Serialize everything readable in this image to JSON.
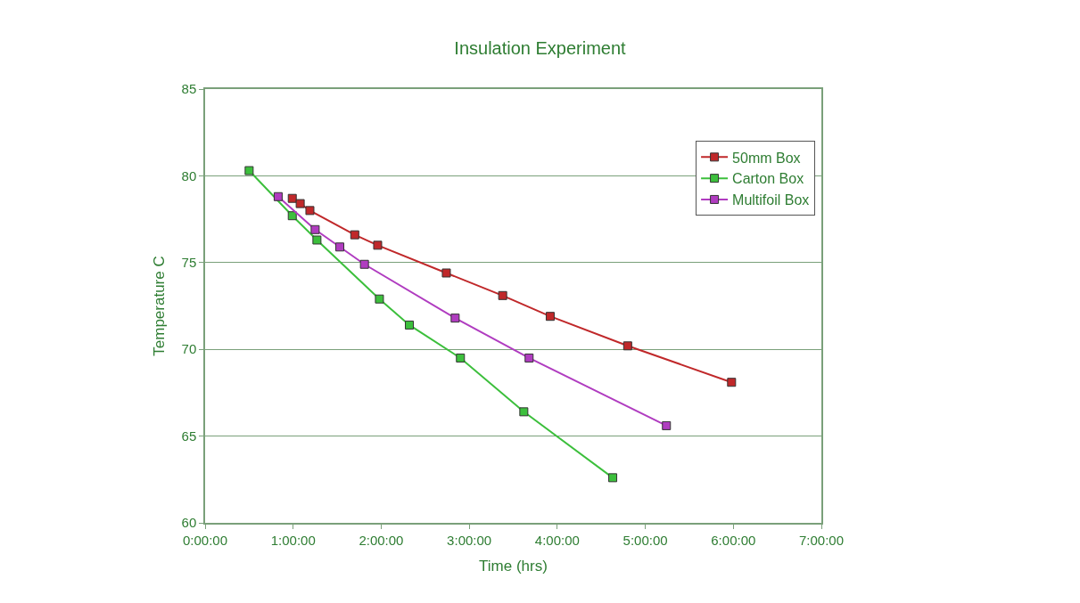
{
  "chart_data": {
    "type": "line",
    "title": "Insulation Experiment",
    "xlabel": "Time (hrs)",
    "ylabel": "Temperature C",
    "xlim": [
      0,
      7
    ],
    "xticks": [
      {
        "value": 0,
        "label": "0:00:00"
      },
      {
        "value": 1,
        "label": "1:00:00"
      },
      {
        "value": 2,
        "label": "2:00:00"
      },
      {
        "value": 3,
        "label": "3:00:00"
      },
      {
        "value": 4,
        "label": "4:00:00"
      },
      {
        "value": 5,
        "label": "5:00:00"
      },
      {
        "value": 6,
        "label": "6:00:00"
      },
      {
        "value": 7,
        "label": "7:00:00"
      }
    ],
    "ylim": [
      60,
      85
    ],
    "yticks": [
      60,
      65,
      70,
      75,
      80,
      85
    ],
    "grid": "y",
    "legend": "top right",
    "marker": "square",
    "line_style": "solid",
    "series": [
      {
        "name": "50mm Box",
        "color": "#c0282a",
        "x": [
          0.99,
          1.08,
          1.19,
          1.7,
          1.96,
          2.74,
          3.38,
          3.92,
          4.8,
          5.98
        ],
        "values": [
          78.7,
          78.4,
          78.0,
          76.6,
          76.0,
          74.4,
          73.1,
          71.9,
          70.2,
          68.1
        ]
      },
      {
        "name": "Carton Box",
        "color": "#3cbf3c",
        "x": [
          0.5,
          0.99,
          1.27,
          1.98,
          2.32,
          2.9,
          3.62,
          4.63
        ],
        "values": [
          80.3,
          77.7,
          76.3,
          72.9,
          71.4,
          69.5,
          66.4,
          62.6
        ]
      },
      {
        "name": "Multifoil Box",
        "color": "#b03cc0",
        "x": [
          0.83,
          1.25,
          1.53,
          1.81,
          2.84,
          3.68,
          5.24
        ],
        "values": [
          78.8,
          76.9,
          75.9,
          74.9,
          71.8,
          69.5,
          65.6
        ]
      }
    ]
  }
}
